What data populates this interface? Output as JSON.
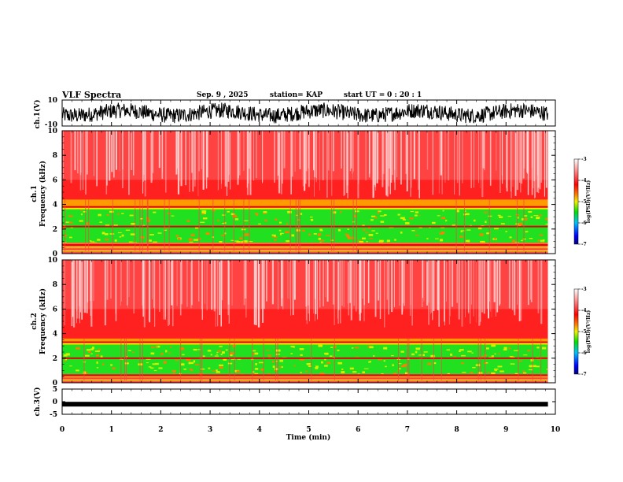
{
  "header": {
    "title": "VLF Spectra",
    "date": "Sep. 9 , 2025",
    "station": "station= KAP",
    "start_label": "start  UT  =",
    "start_time": "0 : 20 : 1"
  },
  "colors": {
    "background_red": "#ff2020",
    "pale": "#ffd6d6",
    "yellow": "#f0f000",
    "green": "#20e020",
    "axis": "#000000"
  },
  "chart_data": [
    {
      "type": "line",
      "name": "ch1-waveform",
      "ylabel": "ch.1(V)",
      "ylim": [
        -10,
        10
      ],
      "yticks": [
        10,
        -10
      ],
      "xlim": [
        0,
        10
      ]
    },
    {
      "type": "heatmap",
      "name": "ch1-spectrogram",
      "ylabel": "ch.1\nFrequency  (kHz)",
      "ylabel_line1": "ch.1",
      "ylabel_line2": "Frequency  (kHz)",
      "ylim": [
        0,
        10
      ],
      "yticks": [
        0,
        2,
        4,
        6,
        8,
        10
      ],
      "xlim": [
        0,
        9.85
      ],
      "green_band_khz": [
        0.9,
        3.6
      ],
      "yellow_edge_khz": 4.4,
      "red_lines_khz": [
        2.2,
        3.8,
        0.7
      ],
      "colorbar": {
        "label": "log(PSD)(V²/Hz)",
        "ticks": [
          -3,
          -4,
          -5,
          -6,
          -7
        ]
      }
    },
    {
      "type": "heatmap",
      "name": "ch2-spectrogram",
      "ylabel_line1": "ch.2",
      "ylabel_line2": "Frequency  (kHz)",
      "ylim": [
        0,
        10
      ],
      "yticks": [
        0,
        2,
        4,
        6,
        8,
        10
      ],
      "xlim": [
        0,
        9.85
      ],
      "green_band_khz": [
        0.7,
        3.1
      ],
      "yellow_edge_khz": 3.6,
      "red_lines_khz": [
        2.0,
        3.3,
        0.6
      ],
      "colorbar": {
        "label": "log(PSD)(V²/Hz)",
        "ticks": [
          -3,
          -4,
          -5,
          -6,
          -7
        ]
      }
    },
    {
      "type": "line",
      "name": "ch3-waveform",
      "ylabel": "ch.3(V)",
      "ylim": [
        -5,
        5
      ],
      "yticks": [
        5,
        0,
        -5
      ],
      "level": -1.0
    }
  ],
  "xaxis": {
    "label": "Time  (min)",
    "ticks": [
      0,
      1,
      2,
      3,
      4,
      5,
      6,
      7,
      8,
      9,
      10
    ]
  }
}
